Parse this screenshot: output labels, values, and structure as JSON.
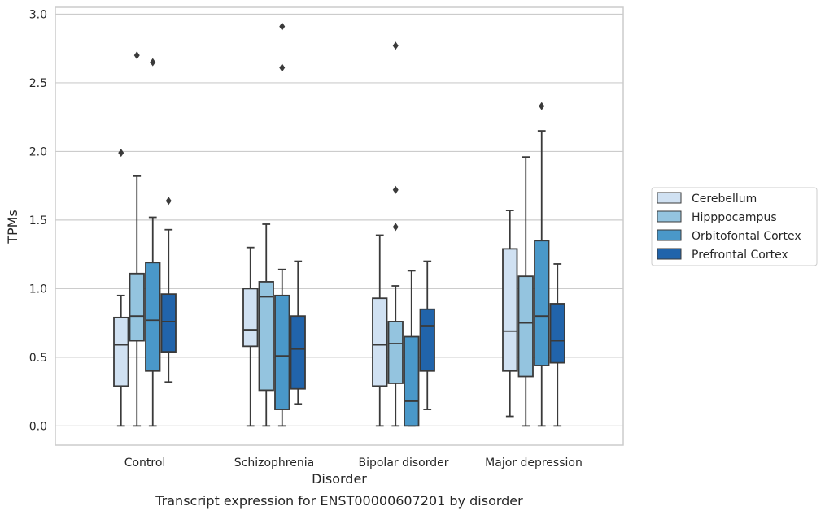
{
  "chart_data": {
    "type": "box",
    "title": "",
    "caption": "Transcript expression for ENST00000607201 by disorder",
    "xlabel": "Disorder",
    "ylabel": "TPMs",
    "ylim": [
      -0.14,
      3.05
    ],
    "yticks": [
      "0.0",
      "0.5",
      "1.0",
      "1.5",
      "2.0",
      "2.5",
      "3.0"
    ],
    "grid": "horizontal",
    "legend_position": "right",
    "categories": [
      "Control",
      "Schizophrenia",
      "Bipolar disorder",
      "Major depression"
    ],
    "series": [
      {
        "name": "Cerebellum",
        "color": "#d0e1f2",
        "boxes": [
          {
            "whisker_low": 0.0,
            "q1": 0.29,
            "median": 0.59,
            "q3": 0.79,
            "whisker_high": 0.95,
            "outliers": [
              1.99
            ]
          },
          {
            "whisker_low": 0.0,
            "q1": 0.58,
            "median": 0.7,
            "q3": 1.0,
            "whisker_high": 1.3,
            "outliers": []
          },
          {
            "whisker_low": 0.0,
            "q1": 0.29,
            "median": 0.59,
            "q3": 0.93,
            "whisker_high": 1.39,
            "outliers": []
          },
          {
            "whisker_low": 0.07,
            "q1": 0.4,
            "median": 0.69,
            "q3": 1.29,
            "whisker_high": 1.57,
            "outliers": []
          }
        ]
      },
      {
        "name": "Hipppocampus",
        "color": "#94c4df",
        "boxes": [
          {
            "whisker_low": 0.0,
            "q1": 0.62,
            "median": 0.8,
            "q3": 1.11,
            "whisker_high": 1.82,
            "outliers": [
              2.7
            ]
          },
          {
            "whisker_low": 0.0,
            "q1": 0.26,
            "median": 0.94,
            "q3": 1.05,
            "whisker_high": 1.47,
            "outliers": []
          },
          {
            "whisker_low": 0.0,
            "q1": 0.31,
            "median": 0.6,
            "q3": 0.76,
            "whisker_high": 1.02,
            "outliers": [
              1.45,
              1.72,
              2.77
            ]
          },
          {
            "whisker_low": 0.0,
            "q1": 0.36,
            "median": 0.75,
            "q3": 1.09,
            "whisker_high": 1.96,
            "outliers": []
          }
        ]
      },
      {
        "name": "Orbitofontal Cortex",
        "color": "#4a98c9",
        "boxes": [
          {
            "whisker_low": 0.0,
            "q1": 0.4,
            "median": 0.77,
            "q3": 1.19,
            "whisker_high": 1.52,
            "outliers": [
              2.65
            ]
          },
          {
            "whisker_low": 0.0,
            "q1": 0.12,
            "median": 0.51,
            "q3": 0.95,
            "whisker_high": 1.14,
            "outliers": [
              2.61,
              2.91
            ]
          },
          {
            "whisker_low": 0.0,
            "q1": 0.0,
            "median": 0.18,
            "q3": 0.65,
            "whisker_high": 1.13,
            "outliers": []
          },
          {
            "whisker_low": 0.0,
            "q1": 0.44,
            "median": 0.8,
            "q3": 1.35,
            "whisker_high": 2.15,
            "outliers": [
              2.33
            ]
          }
        ]
      },
      {
        "name": "Prefrontal Cortex",
        "color": "#2164ab",
        "boxes": [
          {
            "whisker_low": 0.32,
            "q1": 0.54,
            "median": 0.76,
            "q3": 0.96,
            "whisker_high": 1.43,
            "outliers": [
              1.64
            ]
          },
          {
            "whisker_low": 0.16,
            "q1": 0.27,
            "median": 0.56,
            "q3": 0.8,
            "whisker_high": 1.2,
            "outliers": []
          },
          {
            "whisker_low": 0.12,
            "q1": 0.4,
            "median": 0.73,
            "q3": 0.85,
            "whisker_high": 1.2,
            "outliers": []
          },
          {
            "whisker_low": 0.0,
            "q1": 0.46,
            "median": 0.62,
            "q3": 0.89,
            "whisker_high": 1.18,
            "outliers": []
          }
        ]
      }
    ]
  }
}
